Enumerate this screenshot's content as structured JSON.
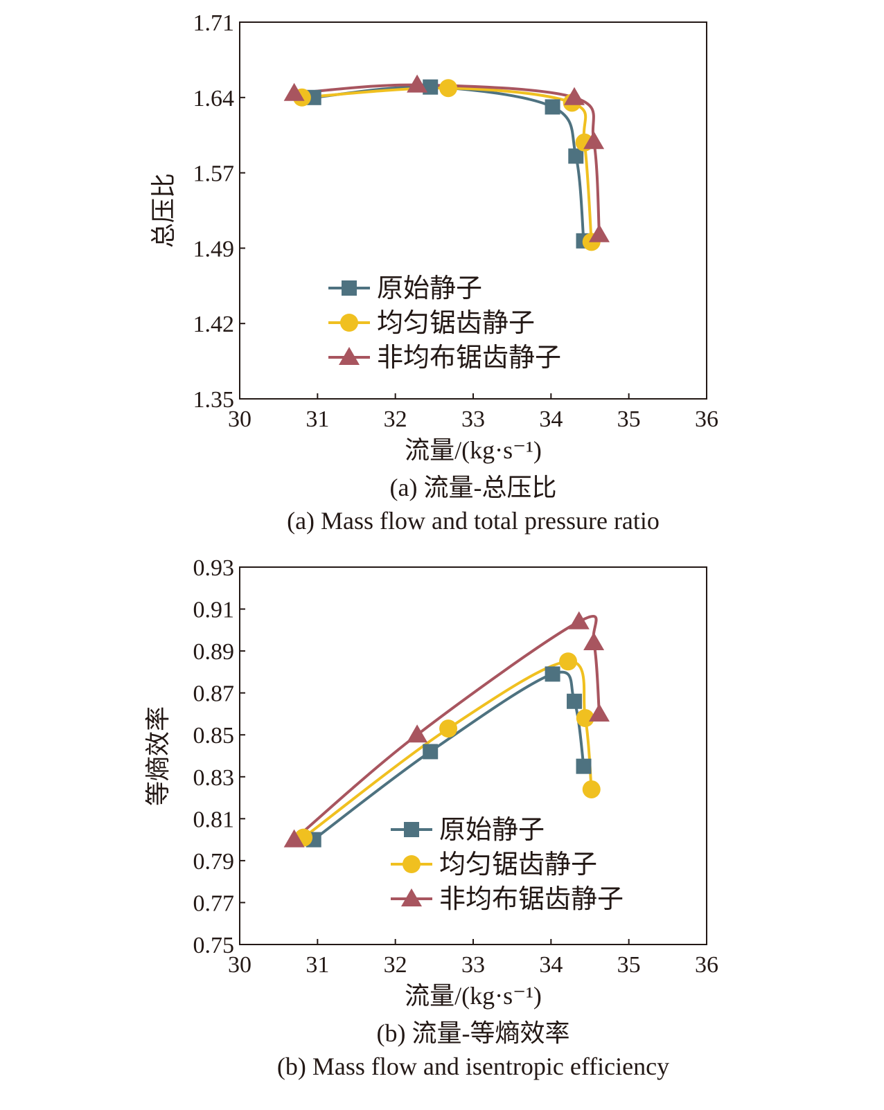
{
  "chart_data": [
    {
      "type": "line",
      "caption_cn": "(a) 流量-总压比",
      "caption_en": "(a) Mass flow and total pressure ratio",
      "xlabel": "流量/(kg·s⁻¹)",
      "ylabel": "总压比",
      "xlim": [
        30,
        36
      ],
      "ylim": [
        1.35,
        1.71
      ],
      "xticks": [
        "30",
        "31",
        "32",
        "33",
        "34",
        "35",
        "36"
      ],
      "yticks": [
        "1.35",
        "1.42",
        "1.49",
        "1.57",
        "1.64",
        "1.71"
      ],
      "legend_position": "lower-left",
      "series": [
        {
          "name": "原始静子",
          "color": "#4e7280",
          "marker": "square",
          "x": [
            30.95,
            32.45,
            34.02,
            34.32,
            34.42
          ],
          "y": [
            1.638,
            1.648,
            1.629,
            1.582,
            1.501
          ]
        },
        {
          "name": "均匀锯齿静子",
          "color": "#f0c020",
          "marker": "circle",
          "x": [
            30.8,
            32.68,
            34.27,
            34.43,
            34.52
          ],
          "y": [
            1.638,
            1.647,
            1.633,
            1.595,
            1.5
          ]
        },
        {
          "name": "非均布锯齿静子",
          "color": "#a8555f",
          "marker": "triangle",
          "x": [
            30.7,
            32.28,
            34.3,
            34.55,
            34.62
          ],
          "y": [
            1.642,
            1.65,
            1.638,
            1.596,
            1.507
          ]
        }
      ]
    },
    {
      "type": "line",
      "caption_cn": "(b) 流量-等熵效率",
      "caption_en": "(b) Mass flow and isentropic efficiency",
      "xlabel": "流量/(kg·s⁻¹)",
      "ylabel": "等熵效率",
      "xlim": [
        30,
        36
      ],
      "ylim": [
        0.75,
        0.93
      ],
      "xticks": [
        "30",
        "31",
        "32",
        "33",
        "34",
        "35",
        "36"
      ],
      "yticks": [
        "0.75",
        "0.77",
        "0.79",
        "0.81",
        "0.83",
        "0.85",
        "0.87",
        "0.89",
        "0.91",
        "0.93"
      ],
      "legend_position": "lower-right",
      "series": [
        {
          "name": "原始静子",
          "color": "#4e7280",
          "marker": "square",
          "x": [
            30.95,
            32.45,
            34.02,
            34.3,
            34.42
          ],
          "y": [
            0.8,
            0.842,
            0.879,
            0.866,
            0.835
          ]
        },
        {
          "name": "均匀锯齿静子",
          "color": "#f0c020",
          "marker": "circle",
          "x": [
            30.82,
            32.68,
            34.22,
            34.44,
            34.52
          ],
          "y": [
            0.801,
            0.853,
            0.885,
            0.858,
            0.824
          ]
        },
        {
          "name": "非均布锯齿静子",
          "color": "#a8555f",
          "marker": "triangle",
          "x": [
            30.7,
            32.28,
            34.36,
            34.55,
            34.62
          ],
          "y": [
            0.8,
            0.85,
            0.904,
            0.894,
            0.86
          ]
        }
      ]
    }
  ]
}
